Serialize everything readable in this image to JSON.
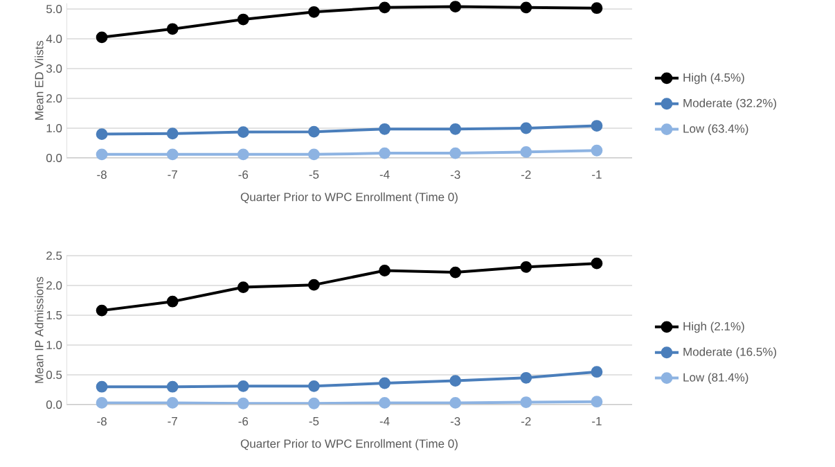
{
  "chart_data": [
    {
      "type": "line",
      "xlabel": "Quarter Prior to WPC Enrollment (Time 0)",
      "ylabel": "Mean ED Viists",
      "categories": [
        "-8",
        "-7",
        "-6",
        "-5",
        "-4",
        "-3",
        "-2",
        "-1"
      ],
      "ylim": [
        0,
        5.2
      ],
      "yticks": [
        {
          "value": 0,
          "label": "0.0"
        },
        {
          "value": 1,
          "label": "1.0"
        },
        {
          "value": 2,
          "label": "2.0"
        },
        {
          "value": 3,
          "label": "3.0"
        },
        {
          "value": 4,
          "label": "4.0"
        },
        {
          "value": 5,
          "label": "5.0"
        }
      ],
      "grid": "y",
      "legend": "right",
      "marker": "circle",
      "line_style": "solid",
      "series": [
        {
          "name": "High (4.5%)",
          "color": "#000000",
          "values": [
            4.05,
            4.33,
            4.65,
            4.9,
            5.05,
            5.08,
            5.05,
            5.03
          ]
        },
        {
          "name": "Moderate (32.2%)",
          "color": "#4a7ebb",
          "values": [
            0.8,
            0.82,
            0.87,
            0.88,
            0.97,
            0.97,
            1.0,
            1.08
          ]
        },
        {
          "name": "Low (63.4%)",
          "color": "#8db3e2",
          "values": [
            0.12,
            0.12,
            0.12,
            0.12,
            0.16,
            0.16,
            0.2,
            0.25
          ]
        }
      ]
    },
    {
      "type": "line",
      "xlabel": "Quarter Prior to WPC Enrollment (Time 0)",
      "ylabel": "Mean IP Admissions",
      "categories": [
        "-8",
        "-7",
        "-6",
        "-5",
        "-4",
        "-3",
        "-2",
        "-1"
      ],
      "ylim": [
        0,
        2.5
      ],
      "yticks": [
        {
          "value": 0,
          "label": "0.0"
        },
        {
          "value": 0.5,
          "label": "0.5"
        },
        {
          "value": 1,
          "label": "1.0"
        },
        {
          "value": 1.5,
          "label": "1.5"
        },
        {
          "value": 2,
          "label": "2.0"
        },
        {
          "value": 2.5,
          "label": "2.5"
        }
      ],
      "grid": "y",
      "legend": "right",
      "marker": "circle",
      "line_style": "solid",
      "series": [
        {
          "name": "High (2.1%)",
          "color": "#000000",
          "values": [
            1.58,
            1.73,
            1.97,
            2.01,
            2.25,
            2.22,
            2.31,
            2.37
          ]
        },
        {
          "name": "Moderate (16.5%)",
          "color": "#4a7ebb",
          "values": [
            0.3,
            0.3,
            0.31,
            0.31,
            0.36,
            0.4,
            0.45,
            0.55
          ]
        },
        {
          "name": "Low (81.4%)",
          "color": "#8db3e2",
          "values": [
            0.03,
            0.03,
            0.02,
            0.02,
            0.03,
            0.03,
            0.04,
            0.05
          ]
        }
      ]
    }
  ]
}
